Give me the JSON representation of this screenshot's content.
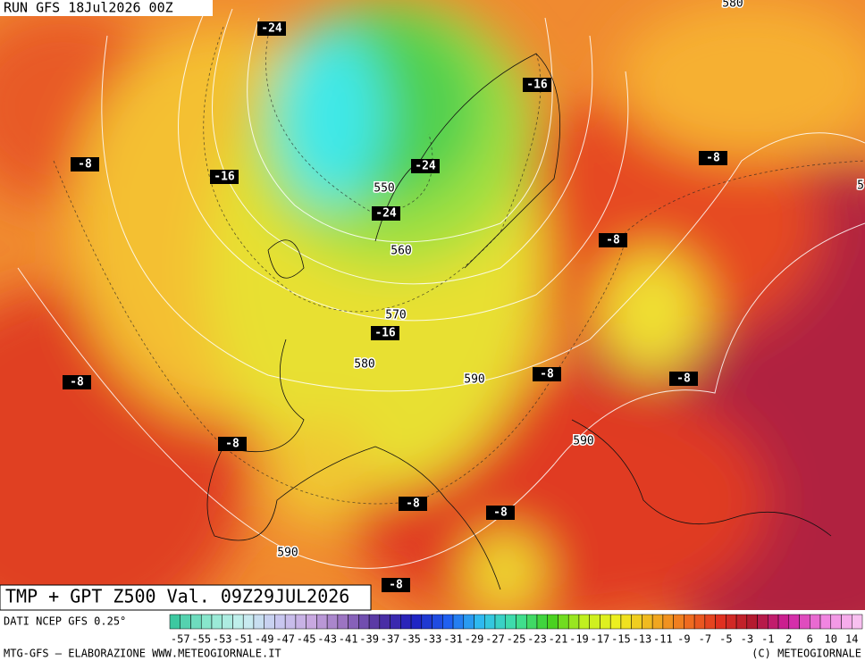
{
  "header": {
    "run": "RUN GFS 18Jul2026 00Z",
    "title": "TMP + GPT Z500 Val. 09Z29JUL2026"
  },
  "map": {
    "temperature_labels": [
      -24,
      -16,
      -8,
      -16,
      -8,
      -24,
      -24,
      -8,
      -16,
      -8,
      -8,
      -8,
      -8,
      -8,
      -8,
      -8
    ],
    "height_labels": [
      580,
      550,
      560,
      570,
      580,
      590,
      590,
      590,
      5
    ]
  },
  "legend": {
    "source": "DATI NCEP GFS 0.25°",
    "ticks": [
      -57,
      -55,
      -53,
      -51,
      -49,
      -47,
      -45,
      -43,
      -41,
      -39,
      -37,
      -35,
      -33,
      -31,
      -29,
      -27,
      -25,
      -23,
      -21,
      -19,
      -17,
      -15,
      -13,
      -11,
      -9,
      -7,
      -5,
      -3,
      -1,
      2,
      6,
      10,
      14
    ],
    "colors": [
      "#3cc8a0",
      "#8ee8d0",
      "#c8f0f0",
      "#c8c8f0",
      "#c8a8e0",
      "#9870c0",
      "#5030a0",
      "#2020c0",
      "#2060f0",
      "#30c0f0",
      "#40e0a0",
      "#40d020",
      "#c0f020",
      "#f0f020",
      "#f0b020",
      "#f07020",
      "#e03020",
      "#b01830",
      "#d020a0",
      "#f080e0",
      "#f8c0f0"
    ]
  },
  "footer": {
    "credit": "MTG-GFS — ELABORAZIONE WWW.METEOGIORNALE.IT",
    "copyright": "(C) METEOGIORNALE"
  }
}
